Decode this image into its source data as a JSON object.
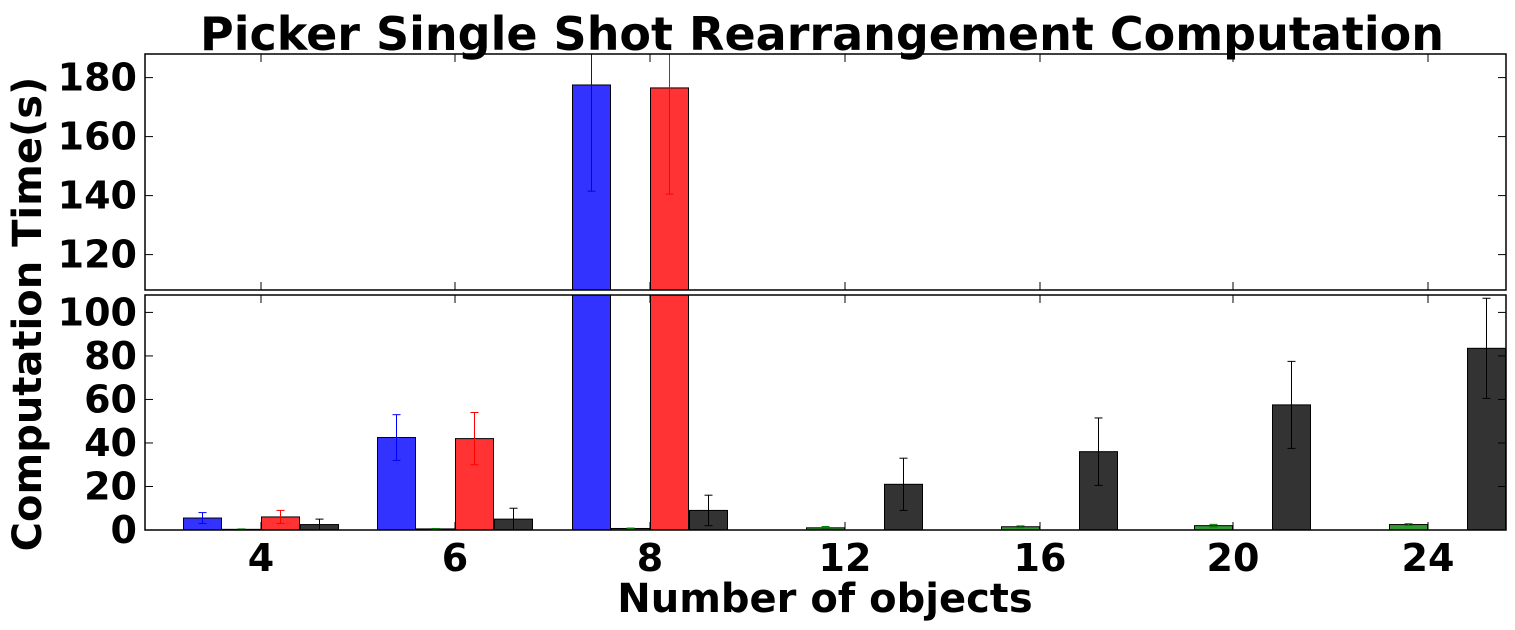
{
  "chart_data": {
    "type": "bar",
    "title": "Picker Single Shot Rearrangement Computation",
    "xlabel": "Number of objects",
    "ylabel": "Computation Time(s)",
    "categories": [
      "4",
      "6",
      "8",
      "12",
      "16",
      "20",
      "24"
    ],
    "broken_axis": true,
    "top_panel": {
      "ylim": [
        108,
        188
      ],
      "yticks": [
        120,
        140,
        160,
        180
      ]
    },
    "bottom_panel": {
      "ylim": [
        0,
        108
      ],
      "yticks": [
        0,
        20,
        40,
        60,
        80,
        100
      ]
    },
    "legend": "none",
    "grid": false,
    "series": [
      {
        "color": "#0000ff",
        "values": [
          5.5,
          42.5,
          177.5,
          null,
          null,
          null,
          null
        ],
        "errors": [
          2.5,
          10.5,
          36,
          null,
          null,
          null,
          null
        ]
      },
      {
        "color": "#008000",
        "values": [
          0.3,
          0.5,
          0.7,
          1.0,
          1.5,
          2.0,
          2.5
        ],
        "errors": [
          0.2,
          0.2,
          0.2,
          0.6,
          0.4,
          0.6,
          0.4
        ]
      },
      {
        "color": "#ff0000",
        "values": [
          6.0,
          42.0,
          176.5,
          null,
          null,
          null,
          null
        ],
        "errors": [
          3.0,
          12.0,
          36,
          null,
          null,
          null,
          null
        ]
      },
      {
        "color": "#000000",
        "values": [
          2.5,
          5.0,
          9.0,
          21.0,
          36.0,
          57.5,
          83.5
        ],
        "errors": [
          2.5,
          5.0,
          7.0,
          12.0,
          15.5,
          20.0,
          23.0
        ]
      }
    ]
  }
}
